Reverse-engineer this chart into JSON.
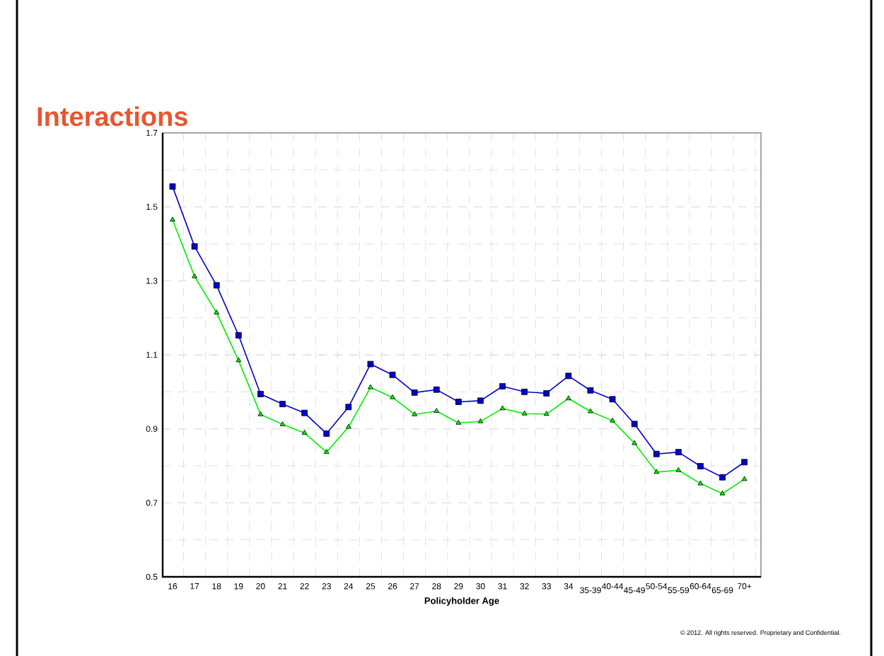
{
  "chart_data": {
    "type": "line",
    "title": "Interactions",
    "xlabel": "Policyholder Age",
    "categories": [
      "16",
      "17",
      "18",
      "19",
      "20",
      "21",
      "22",
      "23",
      "24",
      "25",
      "26",
      "27",
      "28",
      "29",
      "30",
      "31",
      "32",
      "33",
      "34",
      "35-39",
      "40-44",
      "45-49",
      "50-54",
      "55-59",
      "60-64",
      "65-69",
      "70+"
    ],
    "series": [
      {
        "color": "#0000cc",
        "marker": "square",
        "values": [
          1.555,
          1.393,
          1.288,
          1.153,
          0.994,
          0.967,
          0.943,
          0.887,
          0.959,
          1.075,
          1.046,
          0.998,
          1.006,
          0.973,
          0.976,
          1.015,
          1.0,
          0.996,
          1.043,
          1.004,
          0.98,
          0.913,
          0.832,
          0.837,
          0.799,
          0.769,
          0.81
        ]
      },
      {
        "color": "#00ee00",
        "marker": "triangle",
        "values": [
          1.465,
          1.312,
          1.214,
          1.085,
          0.939,
          0.912,
          0.889,
          0.837,
          0.905,
          1.012,
          0.985,
          0.939,
          0.948,
          0.916,
          0.92,
          0.955,
          0.941,
          0.94,
          0.982,
          0.947,
          0.922,
          0.861,
          0.783,
          0.788,
          0.752,
          0.725,
          0.764
        ]
      }
    ],
    "ylim": [
      0.5,
      1.7
    ],
    "yticks": [
      0.5,
      0.7,
      0.9,
      1.1,
      1.3,
      1.5,
      1.7
    ],
    "grid": true,
    "line_style": "solid",
    "annotations": [
      "© 2012. All rights reserved. Proprietary and Confidential."
    ]
  }
}
